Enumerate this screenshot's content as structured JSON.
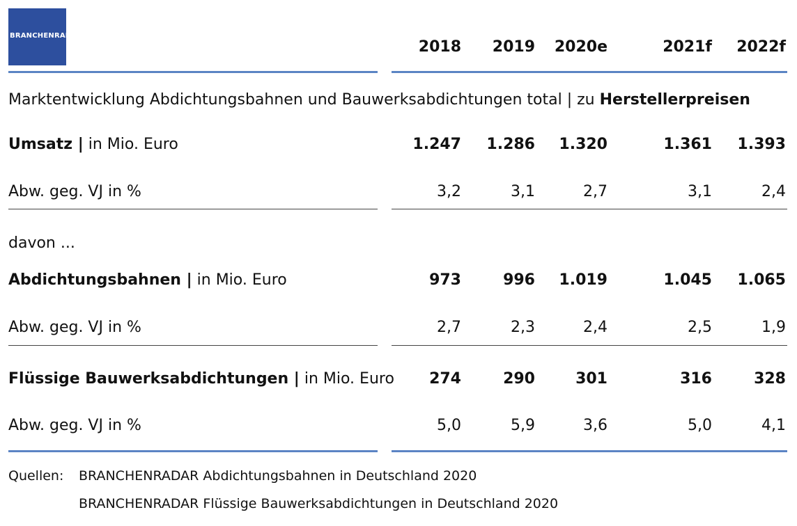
{
  "header": {
    "logo": "BRANCHENRADAR",
    "columns": [
      "2018",
      "2019",
      "2020e",
      "2021f",
      "2022f"
    ]
  },
  "subtitle": {
    "text": "Marktentwicklung Abdichtungsbahnen und Bauwerksabdichtungen total | zu",
    "bold": "Herstellerpreisen"
  },
  "rows": [
    {
      "label_bold": "Umsatz |",
      "label": "in Mio. Euro",
      "values": [
        "1.247",
        "1.286",
        "1.320",
        "1.361",
        "1.393"
      ]
    },
    {
      "label": "Abw. geg. VJ in %",
      "values": [
        "3,2",
        "3,1",
        "2,7",
        "3,1",
        "2,4"
      ]
    },
    {
      "label": "davon ..."
    },
    {
      "label_bold": "Abdichtungsbahnen |",
      "label": "in Mio. Euro",
      "values": [
        "973",
        "996",
        "1.019",
        "1.045",
        "1.065"
      ]
    },
    {
      "label": "Abw. geg. VJ in %",
      "values": [
        "2,7",
        "2,3",
        "2,4",
        "2,5",
        "1,9"
      ]
    },
    {
      "label_bold": "Flüssige Bauwerksabdichtungen |",
      "label": "in Mio. Euro",
      "values": [
        "274",
        "290",
        "301",
        "316",
        "328"
      ]
    },
    {
      "label": "Abw. geg. VJ in %",
      "values": [
        "5,0",
        "5,9",
        "3,6",
        "5,0",
        "4,1"
      ]
    }
  ],
  "sources": {
    "label": "Quellen:",
    "items": [
      "BRANCHENRADAR Abdichtungsbahnen in Deutschland 2020",
      "BRANCHENRADAR Flüssige Bauwerksabdichtungen in Deutschland 2020"
    ]
  }
}
